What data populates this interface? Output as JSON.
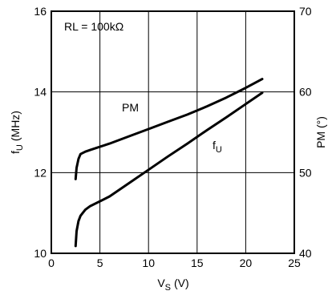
{
  "chart_data": {
    "type": "line",
    "annotation": "RL = 100kΩ",
    "xlabel": {
      "main": "V",
      "sub": "S",
      "unit": "(V)"
    },
    "ylabel_left": {
      "main": "f",
      "sub": "U",
      "unit": "(MHz)"
    },
    "ylabel_right": "PM (°)",
    "xlim": [
      0,
      25
    ],
    "ylim_left": [
      10,
      16
    ],
    "ylim_right": [
      40,
      70
    ],
    "x_ticks": [
      "0",
      "5",
      "10",
      "15",
      "20",
      "25"
    ],
    "y_ticks_left": [
      "10",
      "12",
      "14",
      "16"
    ],
    "y_ticks_right": [
      "40",
      "50",
      "60",
      "70"
    ],
    "grid": true,
    "series": [
      {
        "name": "PM",
        "axis": "right",
        "label": {
          "text": "PM"
        },
        "x": [
          2.5,
          2.6,
          2.8,
          3.0,
          3.5,
          4.0,
          5.0,
          6.0,
          8.0,
          10.0,
          12.0,
          14.0,
          16.0,
          18.0,
          20.0,
          21.7
        ],
        "y": [
          49.2,
          50.6,
          51.7,
          52.3,
          52.6,
          52.8,
          53.2,
          53.6,
          54.5,
          55.4,
          56.3,
          57.2,
          58.2,
          59.3,
          60.5,
          61.6
        ]
      },
      {
        "name": "fU",
        "axis": "left",
        "label": {
          "main": "f",
          "sub": "U"
        },
        "x": [
          2.5,
          2.6,
          2.8,
          3.0,
          3.5,
          4.0,
          5.0,
          6.0,
          8.0,
          10.0,
          12.0,
          14.0,
          16.0,
          18.0,
          20.0,
          21.7
        ],
        "y": [
          10.18,
          10.55,
          10.8,
          10.93,
          11.08,
          11.17,
          11.29,
          11.41,
          11.74,
          12.07,
          12.4,
          12.72,
          13.05,
          13.37,
          13.7,
          13.98
        ]
      }
    ]
  }
}
